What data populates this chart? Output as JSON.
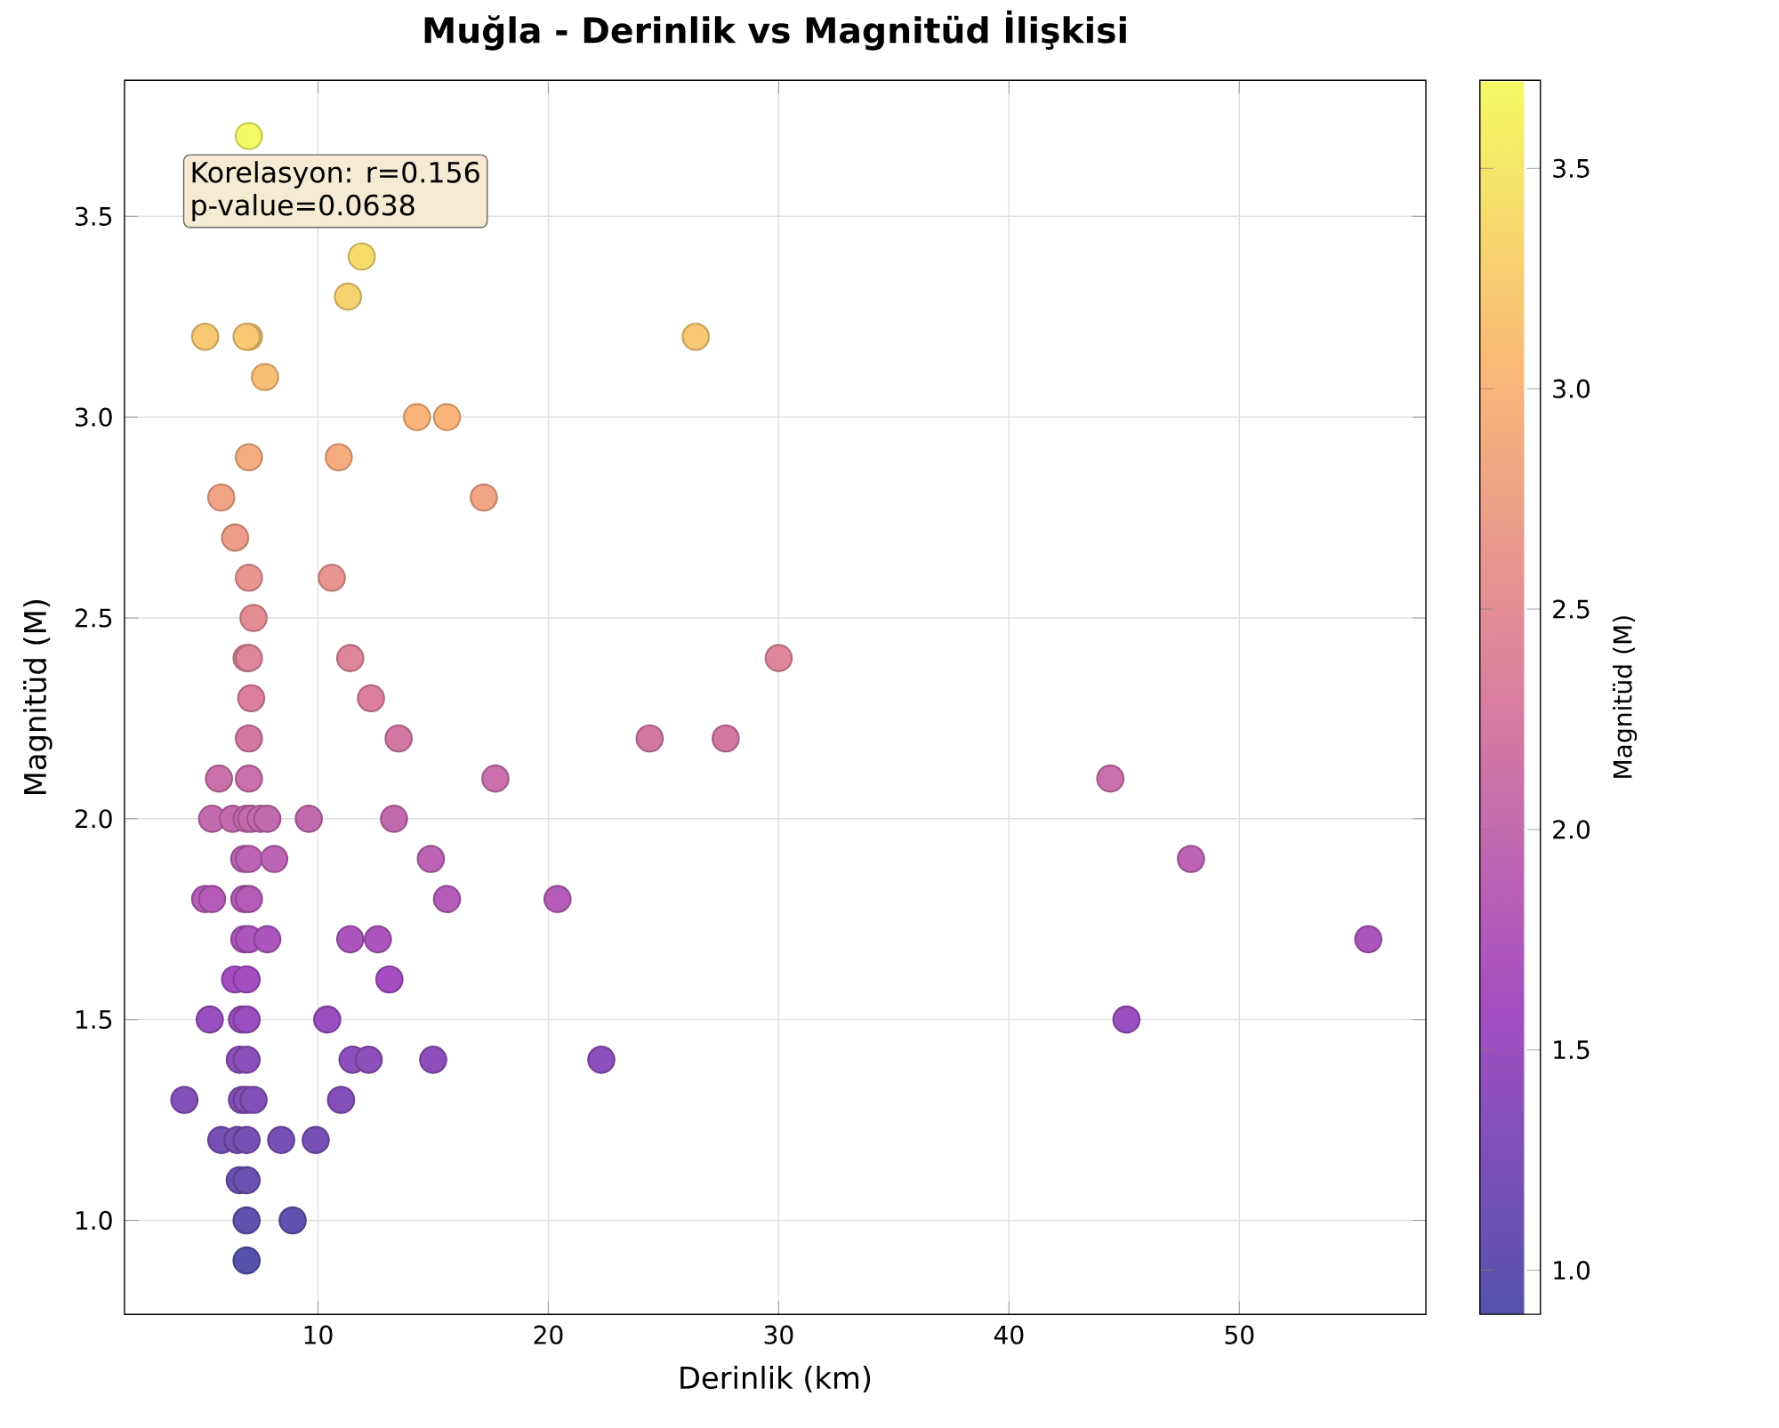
{
  "chart_data": {
    "type": "scatter",
    "title": "**Muğla - Derinlik vs Magnitüd İlişkisi**",
    "xlabel": "Derinlik (km)",
    "ylabel": "Magnitüd (M)",
    "clabel": "Magnitüd (M)",
    "annotations": [
      "Korelasyon: r=0.156",
      "p-value=0.0638"
    ],
    "x": [
      7.0,
      11.9,
      11.3,
      5.1,
      7.0,
      6.9,
      26.4,
      7.7,
      14.3,
      15.6,
      7.0,
      10.9,
      5.8,
      17.2,
      6.4,
      7.0,
      10.6,
      7.2,
      6.9,
      7.0,
      11.4,
      30.0,
      7.1,
      12.3,
      7.0,
      13.5,
      24.4,
      27.7,
      5.7,
      7.0,
      17.7,
      44.4,
      5.4,
      6.3,
      6.9,
      7.1,
      7.5,
      7.8,
      9.6,
      13.3,
      6.8,
      7.0,
      8.1,
      14.9,
      47.9,
      5.1,
      5.4,
      6.8,
      7.0,
      15.6,
      20.4,
      6.8,
      7.0,
      7.8,
      11.4,
      12.6,
      55.6,
      6.4,
      6.9,
      13.1,
      5.3,
      6.7,
      6.9,
      10.4,
      45.1,
      6.6,
      6.9,
      11.5,
      12.2,
      15.0,
      22.3,
      4.2,
      6.7,
      6.9,
      7.2,
      11.0,
      5.8,
      6.5,
      6.9,
      8.4,
      9.9,
      6.6,
      6.9,
      6.9,
      8.9,
      6.9
    ],
    "values": [
      3.7,
      3.4,
      3.3,
      3.2,
      3.2,
      3.2,
      3.2,
      3.1,
      3.0,
      3.0,
      2.9,
      2.9,
      2.8,
      2.8,
      2.7,
      2.6,
      2.6,
      2.5,
      2.4,
      2.4,
      2.4,
      2.4,
      2.3,
      2.3,
      2.2,
      2.2,
      2.2,
      2.2,
      2.1,
      2.1,
      2.1,
      2.1,
      2.0,
      2.0,
      2.0,
      2.0,
      2.0,
      2.0,
      2.0,
      2.0,
      1.9,
      1.9,
      1.9,
      1.9,
      1.9,
      1.8,
      1.8,
      1.8,
      1.8,
      1.8,
      1.8,
      1.7,
      1.7,
      1.7,
      1.7,
      1.7,
      1.7,
      1.6,
      1.6,
      1.6,
      1.5,
      1.5,
      1.5,
      1.5,
      1.5,
      1.4,
      1.4,
      1.4,
      1.4,
      1.4,
      1.4,
      1.3,
      1.3,
      1.3,
      1.3,
      1.3,
      1.2,
      1.2,
      1.2,
      1.2,
      1.2,
      1.1,
      1.1,
      1.0,
      1.0,
      0.9
    ],
    "cvalues": [
      3.7,
      3.4,
      3.3,
      3.2,
      3.2,
      3.2,
      3.2,
      3.1,
      3.0,
      3.0,
      2.9,
      2.9,
      2.8,
      2.8,
      2.7,
      2.6,
      2.6,
      2.5,
      2.4,
      2.4,
      2.4,
      2.4,
      2.3,
      2.3,
      2.2,
      2.2,
      2.2,
      2.2,
      2.1,
      2.1,
      2.1,
      2.1,
      2.0,
      2.0,
      2.0,
      2.0,
      2.0,
      2.0,
      2.0,
      2.0,
      1.9,
      1.9,
      1.9,
      1.9,
      1.9,
      1.8,
      1.8,
      1.8,
      1.8,
      1.8,
      1.8,
      1.7,
      1.7,
      1.7,
      1.7,
      1.7,
      1.7,
      1.6,
      1.6,
      1.6,
      1.5,
      1.5,
      1.5,
      1.5,
      1.5,
      1.4,
      1.4,
      1.4,
      1.4,
      1.4,
      1.4,
      1.3,
      1.3,
      1.3,
      1.3,
      1.3,
      1.2,
      1.2,
      1.2,
      1.2,
      1.2,
      1.1,
      1.1,
      1.0,
      1.0,
      0.9
    ],
    "xlim": [
      1.6,
      58.1
    ],
    "ylim": [
      0.766,
      3.839
    ],
    "xticks": [
      10,
      20,
      30,
      40,
      50
    ],
    "yticks": [
      {
        "value": 1.0,
        "label": "1.0"
      },
      1.5,
      {
        "value": 2.0,
        "label": "2.0"
      },
      2.5,
      {
        "value": 3.0,
        "label": "3.0"
      },
      3.5
    ],
    "clim": [
      0.9,
      3.7
    ],
    "cticks": [
      {
        "value": 1.0,
        "label": "1.0"
      },
      1.5,
      {
        "value": 2.0,
        "label": "2.0"
      },
      2.5,
      {
        "value": 3.0,
        "label": "3.0"
      },
      3.5
    ],
    "grid": true,
    "marker": "circle"
  }
}
